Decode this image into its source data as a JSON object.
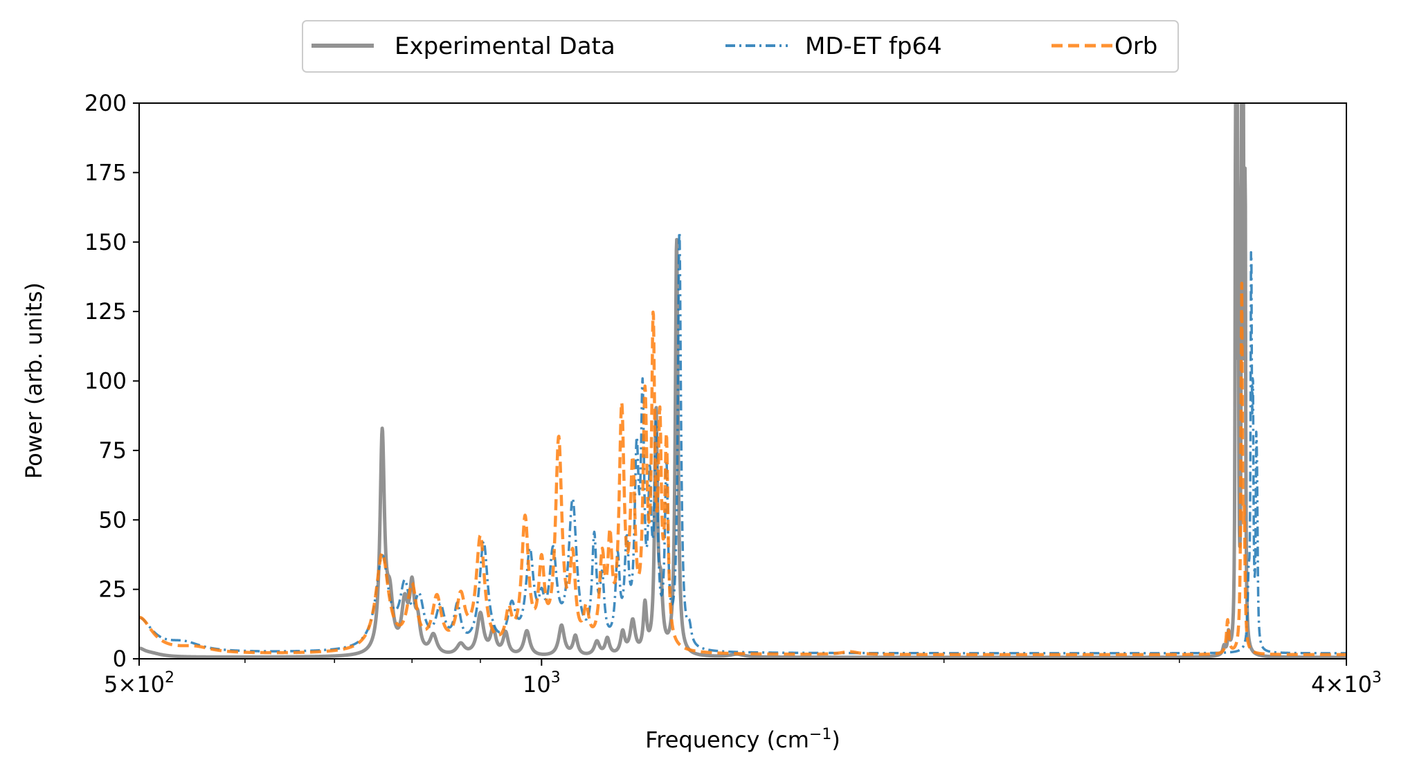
{
  "chart_data": {
    "type": "line",
    "title": "",
    "xlabel_main": "Frequency (cm",
    "xlabel_sup": "−1",
    "xlabel_end": ")",
    "ylabel": "Power (arb. units)",
    "xscale": "log",
    "xlim": [
      500,
      4000
    ],
    "ylim": [
      0,
      200
    ],
    "grid": false,
    "legend_position": "top-center-outside",
    "yticks": [
      0,
      25,
      50,
      75,
      100,
      125,
      150,
      175,
      200
    ],
    "ytick_labels": [
      "0",
      "25",
      "50",
      "75",
      "100",
      "125",
      "150",
      "175",
      "200"
    ],
    "xticks": [
      {
        "value": 500,
        "base": "5×10",
        "exp": "2"
      },
      {
        "value": 1000,
        "base": "10",
        "exp": "3"
      },
      {
        "value": 4000,
        "base": "4×10",
        "exp": "3"
      }
    ],
    "series": [
      {
        "name": "Experimental Data",
        "color": "#7f7f7f",
        "style": "solid",
        "peaks": [
          [
            500,
            2.5,
            6
          ],
          [
            510,
            1.2,
            12
          ],
          [
            760,
            78,
            3.5
          ],
          [
            770,
            18,
            5
          ],
          [
            790,
            17,
            5
          ],
          [
            800,
            22,
            4
          ],
          [
            808,
            10,
            4
          ],
          [
            830,
            7,
            6
          ],
          [
            870,
            4,
            7
          ],
          [
            900,
            15,
            6
          ],
          [
            920,
            9,
            5
          ],
          [
            940,
            8,
            5
          ],
          [
            975,
            9,
            6
          ],
          [
            1035,
            11,
            6
          ],
          [
            1060,
            7,
            5
          ],
          [
            1100,
            5,
            6
          ],
          [
            1120,
            6,
            5
          ],
          [
            1150,
            8,
            5
          ],
          [
            1170,
            12,
            6
          ],
          [
            1195,
            17,
            4
          ],
          [
            1218,
            85,
            3.5
          ],
          [
            1228,
            20,
            5
          ],
          [
            1262,
            150,
            3.5
          ],
          [
            1400,
            1,
            20
          ],
          [
            3240,
            3,
            8
          ],
          [
            3265,
            7,
            6
          ],
          [
            3305,
            200,
            3
          ],
          [
            3315,
            160,
            3
          ],
          [
            3320,
            100,
            3
          ],
          [
            3340,
            210,
            3
          ],
          [
            3350,
            180,
            3
          ],
          [
            3360,
            170,
            3
          ]
        ],
        "base": 0.5
      },
      {
        "name": "MD-ET fp64",
        "color": "#1f77b4",
        "style": "dashdot",
        "peaks": [
          [
            500,
            12,
            14
          ],
          [
            540,
            3,
            20
          ],
          [
            760,
            33,
            10
          ],
          [
            790,
            20,
            8
          ],
          [
            810,
            16,
            8
          ],
          [
            840,
            14,
            8
          ],
          [
            865,
            14,
            6
          ],
          [
            905,
            38,
            8
          ],
          [
            950,
            14,
            8
          ],
          [
            980,
            33,
            8
          ],
          [
            1000,
            12,
            6
          ],
          [
            1020,
            32,
            8
          ],
          [
            1055,
            52,
            9
          ],
          [
            1095,
            37,
            5
          ],
          [
            1110,
            22,
            5
          ],
          [
            1140,
            30,
            5
          ],
          [
            1158,
            34,
            5
          ],
          [
            1178,
            64,
            5
          ],
          [
            1190,
            82,
            4
          ],
          [
            1205,
            52,
            4
          ],
          [
            1218,
            73,
            4
          ],
          [
            1240,
            62,
            4
          ],
          [
            1268,
            150,
            4
          ],
          [
            1290,
            6,
            5
          ],
          [
            3380,
            20,
            6
          ],
          [
            3395,
            138,
            4
          ],
          [
            3405,
            80,
            4
          ],
          [
            3425,
            60,
            4
          ],
          [
            3430,
            38,
            4
          ]
        ],
        "base": 2
      },
      {
        "name": "Orb",
        "color": "#ff7f0e",
        "style": "dashed",
        "peaks": [
          [
            500,
            13,
            14
          ],
          [
            550,
            2,
            20
          ],
          [
            760,
            35,
            10
          ],
          [
            800,
            22,
            8
          ],
          [
            835,
            18,
            8
          ],
          [
            870,
            18,
            8
          ],
          [
            900,
            40,
            8
          ],
          [
            945,
            12,
            6
          ],
          [
            972,
            46,
            7
          ],
          [
            1000,
            28,
            6
          ],
          [
            1030,
            74,
            7
          ],
          [
            1055,
            30,
            6
          ],
          [
            1080,
            12,
            6
          ],
          [
            1110,
            30,
            6
          ],
          [
            1125,
            33,
            5
          ],
          [
            1148,
            82,
            6
          ],
          [
            1170,
            60,
            6
          ],
          [
            1195,
            84,
            5
          ],
          [
            1212,
            108,
            4
          ],
          [
            1226,
            72,
            4
          ],
          [
            1240,
            70,
            4
          ],
          [
            1700,
            1,
            30
          ],
          [
            3260,
            12,
            8
          ],
          [
            3340,
            130,
            5
          ],
          [
            3355,
            40,
            5
          ]
        ],
        "base": 1.5
      }
    ]
  }
}
